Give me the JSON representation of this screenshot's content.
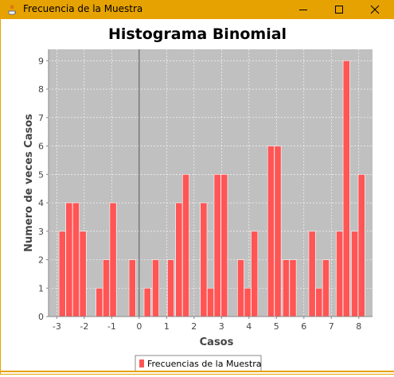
{
  "window": {
    "title": "Frecuencia de la Muestra",
    "icons": [
      "java-app-icon",
      "minimize-icon",
      "maximize-icon",
      "close-icon"
    ]
  },
  "colors": {
    "titlebar": "#e6a200",
    "plot_background": "#c0c0c0",
    "bar": "#ff5555",
    "gridline": "#ffffff",
    "zero_line": "#555555"
  },
  "chart_data": {
    "type": "bar",
    "title": "Histograma Binomial",
    "xlabel": "Casos",
    "ylabel": "Numero de veces Casos",
    "xlim": [
      -3.3,
      8.5
    ],
    "ylim": [
      0,
      9.4
    ],
    "xticks": [
      -3,
      -2,
      -1,
      0,
      1,
      2,
      3,
      4,
      5,
      6,
      7,
      8
    ],
    "yticks": [
      0,
      1,
      2,
      3,
      4,
      5,
      6,
      7,
      8,
      9
    ],
    "grid": true,
    "legend": "bottom-center",
    "series": [
      {
        "name": "Frecuencias de la Muestra",
        "x": [
          -2.8,
          -2.55,
          -2.3,
          -2.05,
          -1.45,
          -1.2,
          -0.95,
          -0.25,
          0.3,
          0.6,
          1.15,
          1.45,
          1.7,
          2.35,
          2.6,
          2.85,
          3.1,
          3.7,
          3.95,
          4.2,
          4.8,
          5.05,
          5.35,
          5.6,
          6.3,
          6.55,
          6.8,
          7.3,
          7.55,
          7.85,
          8.1
        ],
        "values": [
          3,
          4,
          4,
          3,
          1,
          2,
          4,
          2,
          1,
          2,
          2,
          4,
          5,
          4,
          1,
          5,
          5,
          2,
          1,
          3,
          6,
          6,
          2,
          2,
          3,
          1,
          2,
          3,
          9,
          3,
          5
        ]
      }
    ]
  }
}
